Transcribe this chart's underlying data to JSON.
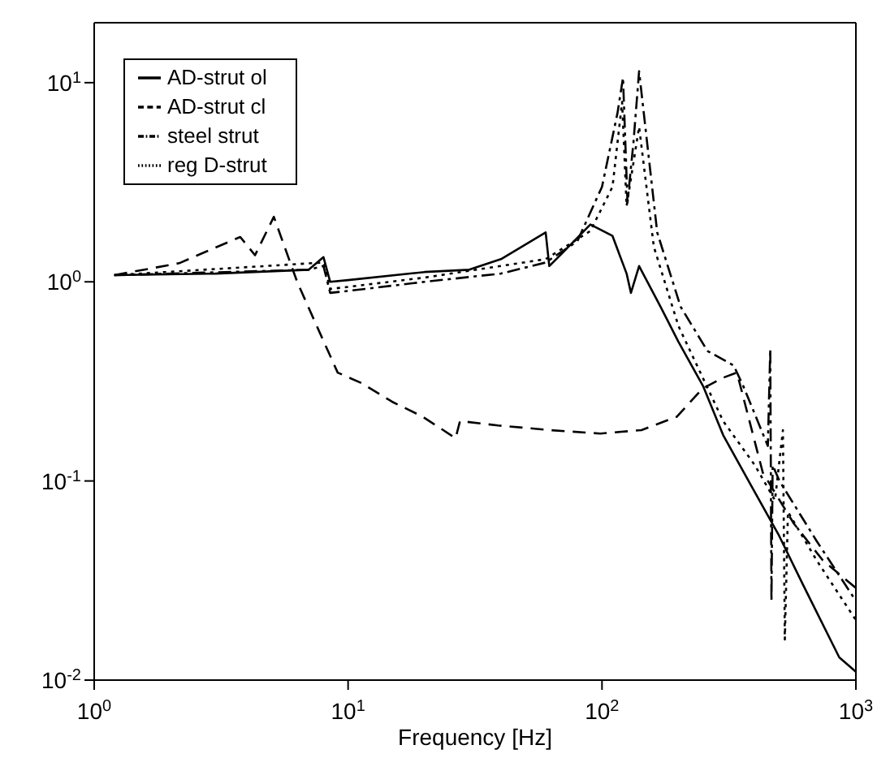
{
  "chart_data": {
    "type": "line",
    "xlabel": "Frequency [Hz]",
    "log": "xy",
    "grid": false,
    "legend": "top left",
    "marker": "none",
    "xlim": [
      1,
      1000
    ],
    "ylim": [
      0.01,
      20
    ],
    "xticks": [
      {
        "value": 1,
        "label": "10$^{0}$"
      },
      {
        "value": 10,
        "label": "10$^{1}$"
      },
      {
        "value": 100,
        "label": "10$^{2}$"
      },
      {
        "value": 1000,
        "label": "10$^{3}$"
      }
    ],
    "yticks": [
      {
        "value": 0.01,
        "label": "10$^{-2}$"
      },
      {
        "value": 0.1,
        "label": "10$^{-1}$"
      },
      {
        "value": 1,
        "label": "10$^{0}$"
      },
      {
        "value": 10,
        "label": "10$^{1}$"
      }
    ],
    "series": [
      {
        "name": "AD-strut ol",
        "color": "#000000",
        "line_style": "solid",
        "x": [
          1.2,
          3,
          7,
          8,
          8.5,
          10,
          20,
          30,
          40,
          60,
          62,
          70,
          90,
          110,
          125,
          130,
          140,
          170,
          200,
          250,
          300,
          390,
          495,
          620,
          860,
          1000
        ],
        "values": [
          1.08,
          1.1,
          1.15,
          1.33,
          1.0,
          1.02,
          1.12,
          1.15,
          1.3,
          1.77,
          1.2,
          1.4,
          1.94,
          1.7,
          1.1,
          0.88,
          1.2,
          0.75,
          0.5,
          0.3,
          0.17,
          0.093,
          0.054,
          0.03,
          0.013,
          0.011
        ]
      },
      {
        "name": "AD-strut cl",
        "color": "#000000",
        "line_style": "dashed",
        "x": [
          1.2,
          2.16,
          3.76,
          4.3,
          5.1,
          6.3,
          7.4,
          9.1,
          11.3,
          14.9,
          19.7,
          26.5,
          27.6,
          39,
          62.6,
          98.5,
          143,
          197,
          248,
          300,
          340,
          430,
          570,
          740,
          1000
        ],
        "values": [
          1.08,
          1.24,
          1.68,
          1.36,
          2.12,
          1.0,
          0.63,
          0.35,
          0.31,
          0.25,
          0.21,
          0.164,
          0.2,
          0.19,
          0.18,
          0.173,
          0.18,
          0.21,
          0.29,
          0.33,
          0.35,
          0.11,
          0.061,
          0.04,
          0.029
        ]
      },
      {
        "name": "steel strut",
        "color": "#000000",
        "line_style": "dashdot",
        "x": [
          1.2,
          7,
          8,
          8.5,
          10,
          20,
          40,
          60,
          80,
          100,
          115,
          121,
          126,
          133,
          140,
          165,
          204,
          260,
          330,
          360,
          450,
          460,
          465,
          470,
          500,
          700,
          1000
        ],
        "values": [
          1.08,
          1.15,
          1.2,
          0.88,
          0.9,
          1.0,
          1.1,
          1.25,
          1.6,
          3,
          7,
          10.6,
          2.5,
          5,
          11.4,
          1.77,
          0.75,
          0.45,
          0.38,
          0.3,
          0.15,
          0.46,
          0.025,
          0.12,
          0.1,
          0.05,
          0.025
        ]
      },
      {
        "name": "reg D-strut",
        "color": "#000000",
        "line_style": "dotted",
        "x": [
          1.2,
          8,
          8.5,
          20,
          60,
          90,
          110,
          120,
          125,
          140,
          160,
          200,
          300,
          400,
          480,
          516,
          525,
          540,
          700,
          1000
        ],
        "values": [
          1.08,
          1.25,
          0.92,
          1.05,
          1.3,
          1.8,
          3,
          8,
          2.4,
          6,
          1.5,
          0.6,
          0.2,
          0.12,
          0.08,
          0.18,
          0.016,
          0.07,
          0.04,
          0.02
        ]
      }
    ]
  }
}
